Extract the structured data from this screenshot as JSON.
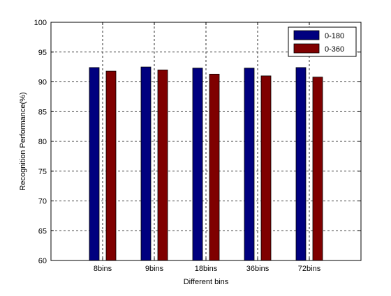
{
  "chart_data": {
    "type": "bar",
    "title": "",
    "xlabel": "Different bins",
    "ylabel": "Recognition Performance(%)",
    "categories": [
      "8bins",
      "9bins",
      "18bins",
      "36bins",
      "72bins"
    ],
    "series": [
      {
        "name": "0-180",
        "values": [
          92.4,
          92.5,
          92.3,
          92.3,
          92.4
        ]
      },
      {
        "name": "0-360",
        "values": [
          91.8,
          92.0,
          91.3,
          91.0,
          90.8
        ]
      }
    ],
    "ylim": [
      60,
      100
    ],
    "yticks": [
      60,
      65,
      70,
      75,
      80,
      85,
      90,
      95,
      100
    ],
    "grid": true,
    "legend_position": "top-right",
    "colors": [
      "#00007f",
      "#7f0000"
    ]
  }
}
